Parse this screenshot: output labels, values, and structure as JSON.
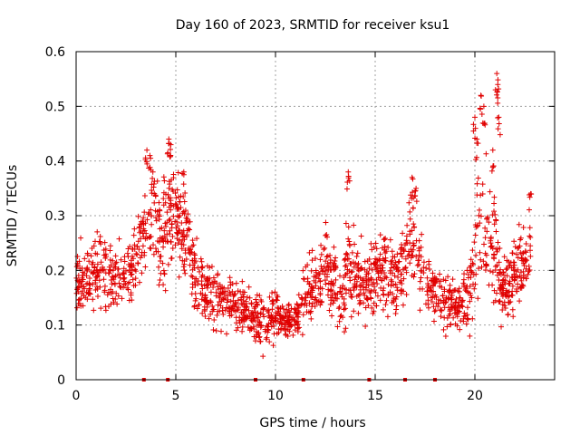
{
  "chart_data": {
    "type": "scatter",
    "title": "Day 160 of 2023, SRMTID for receiver ksu1",
    "xlabel": "GPS time / hours",
    "ylabel": "SRMTID / TECUs",
    "xlim": [
      0,
      24
    ],
    "ylim": [
      0,
      0.6
    ],
    "xticks": [
      0,
      5,
      10,
      15,
      20
    ],
    "yticks": [
      0,
      0.1,
      0.2,
      0.3,
      0.4,
      0.5,
      0.6
    ],
    "xtick_labels": [
      "0",
      "5",
      "10",
      "15",
      "20"
    ],
    "ytick_labels": [
      "0",
      "0.1",
      "0.2",
      "0.3",
      "0.4",
      "0.5",
      "0.6"
    ],
    "grid": true,
    "marker": "+",
    "color": "#e00000",
    "baseline_markers_x": [
      3.4,
      4.6,
      9.0,
      11.4,
      14.7,
      16.5,
      18.0
    ],
    "trend": [
      [
        0.0,
        0.19,
        0.04
      ],
      [
        0.5,
        0.18,
        0.05
      ],
      [
        1.0,
        0.2,
        0.05
      ],
      [
        1.5,
        0.19,
        0.05
      ],
      [
        2.0,
        0.18,
        0.04
      ],
      [
        2.5,
        0.19,
        0.04
      ],
      [
        3.0,
        0.22,
        0.04
      ],
      [
        3.4,
        0.28,
        0.07
      ],
      [
        3.8,
        0.3,
        0.08
      ],
      [
        4.2,
        0.26,
        0.06
      ],
      [
        4.6,
        0.3,
        0.07
      ],
      [
        5.0,
        0.3,
        0.06
      ],
      [
        5.5,
        0.27,
        0.05
      ],
      [
        6.0,
        0.18,
        0.04
      ],
      [
        6.5,
        0.16,
        0.04
      ],
      [
        7.0,
        0.15,
        0.04
      ],
      [
        7.5,
        0.14,
        0.04
      ],
      [
        8.0,
        0.13,
        0.03
      ],
      [
        8.5,
        0.13,
        0.03
      ],
      [
        9.0,
        0.11,
        0.03
      ],
      [
        9.5,
        0.11,
        0.03
      ],
      [
        10.0,
        0.12,
        0.03
      ],
      [
        10.5,
        0.11,
        0.02
      ],
      [
        11.0,
        0.11,
        0.02
      ],
      [
        11.5,
        0.15,
        0.04
      ],
      [
        12.0,
        0.17,
        0.04
      ],
      [
        12.5,
        0.2,
        0.05
      ],
      [
        13.0,
        0.18,
        0.04
      ],
      [
        13.3,
        0.12,
        0.04
      ],
      [
        13.6,
        0.22,
        0.07
      ],
      [
        14.0,
        0.2,
        0.05
      ],
      [
        14.5,
        0.17,
        0.04
      ],
      [
        15.0,
        0.2,
        0.05
      ],
      [
        15.5,
        0.2,
        0.05
      ],
      [
        16.0,
        0.18,
        0.05
      ],
      [
        16.5,
        0.22,
        0.05
      ],
      [
        16.8,
        0.28,
        0.07
      ],
      [
        17.2,
        0.22,
        0.05
      ],
      [
        17.6,
        0.18,
        0.05
      ],
      [
        18.0,
        0.16,
        0.04
      ],
      [
        18.5,
        0.15,
        0.04
      ],
      [
        19.0,
        0.13,
        0.03
      ],
      [
        19.5,
        0.14,
        0.04
      ],
      [
        19.9,
        0.2,
        0.06
      ],
      [
        20.2,
        0.3,
        0.08
      ],
      [
        20.6,
        0.26,
        0.07
      ],
      [
        21.0,
        0.24,
        0.08
      ],
      [
        21.4,
        0.16,
        0.04
      ],
      [
        21.8,
        0.17,
        0.05
      ],
      [
        22.2,
        0.2,
        0.04
      ],
      [
        22.8,
        0.23,
        0.05
      ]
    ],
    "spikes": [
      [
        3.55,
        0.42
      ],
      [
        3.7,
        0.41
      ],
      [
        3.85,
        0.38
      ],
      [
        4.65,
        0.44
      ],
      [
        4.75,
        0.43
      ],
      [
        5.4,
        0.38
      ],
      [
        13.65,
        0.38
      ],
      [
        16.85,
        0.37
      ],
      [
        17.05,
        0.35
      ],
      [
        20.0,
        0.48
      ],
      [
        20.3,
        0.52
      ],
      [
        20.45,
        0.5
      ],
      [
        21.1,
        0.56
      ],
      [
        21.15,
        0.54
      ],
      [
        21.2,
        0.48
      ],
      [
        22.8,
        0.34
      ],
      [
        20.9,
        0.42
      ],
      [
        20.1,
        0.44
      ]
    ],
    "n_points": 1800
  }
}
